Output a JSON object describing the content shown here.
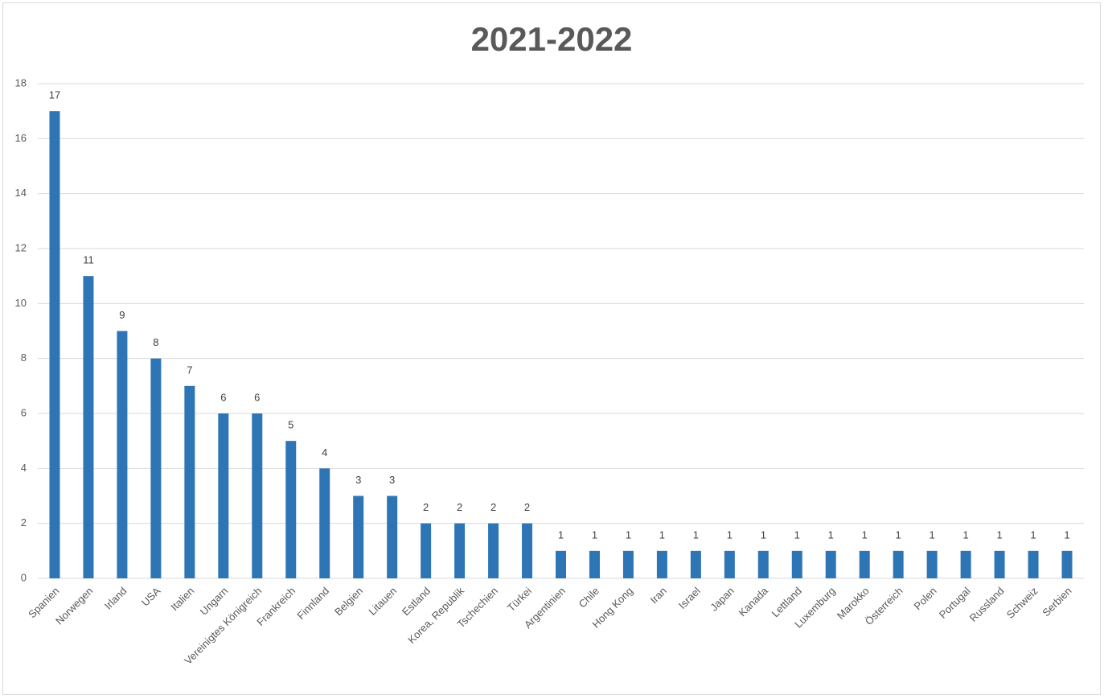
{
  "chart_data": {
    "type": "bar",
    "title": "2021-2022",
    "categories": [
      "Spanien",
      "Norwegen",
      "Irland",
      "USA",
      "Italien",
      "Ungarn",
      "Vereinigtes Königreich",
      "Frankreich",
      "Finnland",
      "Belgien",
      "Litauen",
      "Estland",
      "Korea, Republik",
      "Tschechien",
      "Türkei",
      "Argentinien",
      "Chile",
      "Hong Kong",
      "Iran",
      "Israel",
      "Japan",
      "Kanada",
      "Lettland",
      "Luxemburg",
      "Marokko",
      "Österreich",
      "Polen",
      "Portugal",
      "Russland",
      "Schweiz",
      "Serbien"
    ],
    "values": [
      17,
      11,
      9,
      8,
      7,
      6,
      6,
      5,
      4,
      3,
      3,
      2,
      2,
      2,
      2,
      1,
      1,
      1,
      1,
      1,
      1,
      1,
      1,
      1,
      1,
      1,
      1,
      1,
      1,
      1,
      1
    ],
    "color": "#2e75b6",
    "ylim": [
      0,
      18
    ],
    "yticks": [
      0,
      2,
      4,
      6,
      8,
      10,
      12,
      14,
      16,
      18
    ],
    "grid": true
  }
}
